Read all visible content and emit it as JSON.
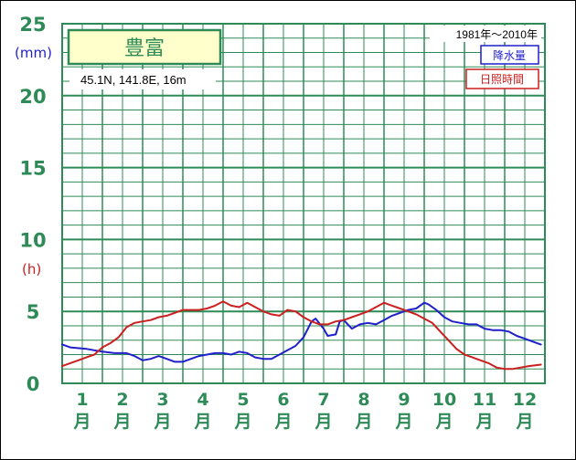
{
  "chart_data": {
    "type": "line",
    "station": "豊富",
    "location": "45.1N,  141.8E,  16m",
    "period": "1981年〜2010年",
    "y_tick_labels": [
      "0",
      "5",
      "10",
      "15",
      "20",
      "25"
    ],
    "ylim": [
      0,
      25
    ],
    "unit_precip": "(mm)",
    "unit_sunshine": "(h)",
    "month_numbers": [
      "1",
      "2",
      "3",
      "4",
      "5",
      "6",
      "7",
      "8",
      "9",
      "10",
      "11",
      "12"
    ],
    "month_char": "月",
    "colors": {
      "precipitation": "#1f1fcc",
      "sunshine": "#cc1f1f",
      "grid": "#2e8b57"
    },
    "series": [
      {
        "name": "降水量",
        "color": "#1f1fcc",
        "x": [
          1.0,
          1.2,
          1.6,
          1.8,
          2.0,
          2.3,
          2.6,
          2.8,
          3.0,
          3.2,
          3.4,
          3.6,
          3.8,
          4.0,
          4.2,
          4.4,
          4.6,
          4.8,
          5.0,
          5.2,
          5.4,
          5.6,
          5.8,
          6.0,
          6.2,
          6.4,
          6.6,
          6.8,
          7.0,
          7.2,
          7.3,
          7.5,
          7.6,
          7.8,
          7.9,
          8.0,
          8.2,
          8.4,
          8.6,
          8.8,
          9.0,
          9.2,
          9.4,
          9.6,
          9.8,
          10.0,
          10.1,
          10.3,
          10.5,
          10.7,
          10.9,
          11.1,
          11.3,
          11.5,
          11.7,
          11.9,
          12.1,
          12.3,
          12.5,
          12.7,
          12.8,
          12.9
        ],
        "values": [
          2.7,
          2.5,
          2.4,
          2.3,
          2.2,
          2.1,
          2.1,
          1.9,
          1.6,
          1.7,
          1.9,
          1.7,
          1.5,
          1.5,
          1.7,
          1.9,
          2.0,
          2.1,
          2.1,
          2.0,
          2.2,
          2.1,
          1.8,
          1.7,
          1.7,
          2.0,
          2.3,
          2.6,
          3.2,
          4.3,
          4.5,
          3.8,
          3.3,
          3.4,
          4.3,
          4.4,
          3.8,
          4.1,
          4.2,
          4.1,
          4.4,
          4.7,
          4.9,
          5.1,
          5.2,
          5.6,
          5.5,
          5.1,
          4.6,
          4.3,
          4.2,
          4.1,
          4.1,
          3.8,
          3.7,
          3.7,
          3.6,
          3.3,
          3.1,
          2.9,
          2.8,
          2.7
        ]
      },
      {
        "name": "日照時間",
        "color": "#cc1f1f",
        "x": [
          1.0,
          1.2,
          1.4,
          1.6,
          1.8,
          2.0,
          2.2,
          2.4,
          2.6,
          2.8,
          3.0,
          3.2,
          3.4,
          3.6,
          3.8,
          4.0,
          4.2,
          4.4,
          4.6,
          4.8,
          5.0,
          5.2,
          5.4,
          5.6,
          5.8,
          6.0,
          6.2,
          6.4,
          6.6,
          6.8,
          7.0,
          7.2,
          7.4,
          7.6,
          7.8,
          8.0,
          8.2,
          8.4,
          8.6,
          8.8,
          9.0,
          9.2,
          9.4,
          9.6,
          9.8,
          10.0,
          10.2,
          10.4,
          10.6,
          10.8,
          11.0,
          11.2,
          11.4,
          11.6,
          11.8,
          12.0,
          12.2,
          12.4,
          12.6,
          12.9
        ],
        "values": [
          1.2,
          1.4,
          1.6,
          1.8,
          2.0,
          2.5,
          2.8,
          3.2,
          3.9,
          4.2,
          4.3,
          4.4,
          4.6,
          4.7,
          4.9,
          5.1,
          5.1,
          5.1,
          5.2,
          5.4,
          5.7,
          5.4,
          5.3,
          5.6,
          5.3,
          5.0,
          4.8,
          4.7,
          5.1,
          5.0,
          4.6,
          4.3,
          4.1,
          4.1,
          4.3,
          4.4,
          4.6,
          4.8,
          5.0,
          5.3,
          5.6,
          5.4,
          5.2,
          5.0,
          4.8,
          4.5,
          4.2,
          3.6,
          3.0,
          2.4,
          2.0,
          1.8,
          1.6,
          1.4,
          1.1,
          1.0,
          1.0,
          1.1,
          1.2,
          1.3
        ]
      }
    ]
  }
}
